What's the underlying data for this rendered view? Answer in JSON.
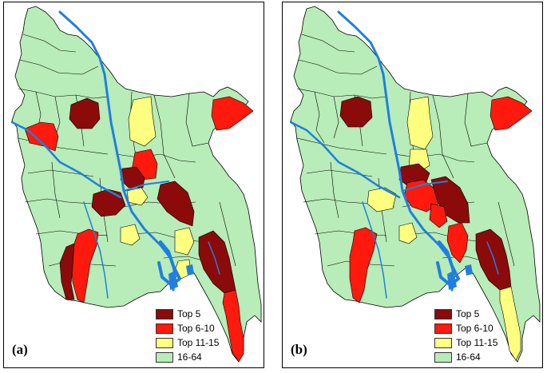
{
  "colors": {
    "top5": "#8b0a0a",
    "top6_10": "#ff1a0d",
    "top11_15": "#ffff80",
    "rest": "#b8ecb8",
    "rivers": "#1f7fe0",
    "borders": "#000000"
  },
  "panels": [
    {
      "id": "a",
      "label": "(a)",
      "legend": [
        {
          "label": "Top 5",
          "color": "#8b0a0a"
        },
        {
          "label": "Top 6-10",
          "color": "#ff1a0d"
        },
        {
          "label": "Top 11-15",
          "color": "#ffff80"
        },
        {
          "label": "16-64",
          "color": "#b8ecb8"
        }
      ]
    },
    {
      "id": "b",
      "label": "(b)",
      "legend": [
        {
          "label": "Top 5",
          "color": "#8b0a0a"
        },
        {
          "label": "Top 6-10",
          "color": "#ff1a0d"
        },
        {
          "label": "Top 11-15",
          "color": "#ffff80"
        },
        {
          "label": "16-64",
          "color": "#b8ecb8"
        }
      ]
    }
  ]
}
